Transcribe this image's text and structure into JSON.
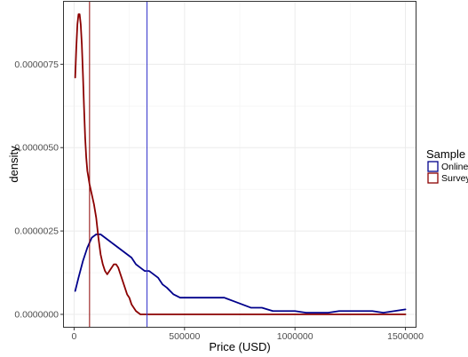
{
  "chart_data": {
    "type": "line",
    "title": "",
    "xlabel": "Price (USD)",
    "ylabel": "density",
    "xlim": [
      -50000,
      1550000
    ],
    "ylim": [
      -4e-07,
      9.4e-06
    ],
    "x_ticks": [
      0,
      500000,
      1000000,
      1500000
    ],
    "x_tick_labels": [
      "0",
      "500000",
      "1000000",
      "1500000"
    ],
    "y_ticks": [
      0,
      2.5e-06,
      5e-06,
      7.5e-06
    ],
    "y_tick_labels": [
      "0.0000000",
      "0.0000025",
      "0.0000050",
      "0.0000075"
    ],
    "grid": true,
    "legend": {
      "title": "Sample",
      "position": "right"
    },
    "series": [
      {
        "name": "Online",
        "color": "#00008B",
        "x": [
          5000,
          20000,
          40000,
          60000,
          80000,
          100000,
          120000,
          140000,
          160000,
          180000,
          200000,
          220000,
          240000,
          260000,
          280000,
          300000,
          320000,
          340000,
          360000,
          380000,
          400000,
          420000,
          450000,
          480000,
          520000,
          560000,
          600000,
          640000,
          660000,
          680000,
          720000,
          760000,
          800000,
          850000,
          900000,
          950000,
          1000000,
          1050000,
          1100000,
          1150000,
          1200000,
          1250000,
          1300000,
          1350000,
          1400000,
          1450000,
          1500000
        ],
        "values": [
          7e-07,
          1.1e-06,
          1.6e-06,
          2e-06,
          2.3e-06,
          2.4e-06,
          2.4e-06,
          2.3e-06,
          2.2e-06,
          2.1e-06,
          2e-06,
          1.9e-06,
          1.8e-06,
          1.7e-06,
          1.5e-06,
          1.4e-06,
          1.3e-06,
          1.3e-06,
          1.2e-06,
          1.1e-06,
          9e-07,
          8e-07,
          6e-07,
          5e-07,
          5e-07,
          5e-07,
          5e-07,
          5e-07,
          5e-07,
          5e-07,
          4e-07,
          3e-07,
          2e-07,
          2e-07,
          1e-07,
          1e-07,
          1e-07,
          5e-08,
          5e-08,
          5e-08,
          1e-07,
          1e-07,
          1e-07,
          1e-07,
          5e-08,
          1e-07,
          1.5e-07
        ]
      },
      {
        "name": "Survey",
        "color": "#8B0000",
        "x": [
          5000,
          10000,
          15000,
          20000,
          25000,
          30000,
          35000,
          40000,
          45000,
          50000,
          55000,
          60000,
          65000,
          70000,
          80000,
          90000,
          100000,
          110000,
          120000,
          130000,
          140000,
          150000,
          160000,
          170000,
          180000,
          190000,
          200000,
          210000,
          220000,
          230000,
          240000,
          250000,
          260000,
          280000,
          300000,
          350000,
          400000,
          500000,
          700000,
          900000,
          1100000,
          1300000,
          1500000
        ],
        "values": [
          7.1e-06,
          8e-06,
          8.7e-06,
          9e-06,
          9e-06,
          8.7e-06,
          8.1e-06,
          7.2e-06,
          6.2e-06,
          5.3e-06,
          4.7e-06,
          4.3e-06,
          4.1e-06,
          3.9e-06,
          3.6e-06,
          3.3e-06,
          2.9e-06,
          2.3e-06,
          1.8e-06,
          1.5e-06,
          1.3e-06,
          1.2e-06,
          1.3e-06,
          1.4e-06,
          1.5e-06,
          1.5e-06,
          1.4e-06,
          1.2e-06,
          1e-06,
          8e-07,
          6e-07,
          5e-07,
          3e-07,
          1e-07,
          0.0,
          0.0,
          0.0,
          0.0,
          0.0,
          0.0,
          0.0,
          0.0,
          0.0
        ]
      }
    ],
    "vlines": [
      {
        "series": "Survey",
        "x": 70000,
        "color": "#8B0000"
      },
      {
        "series": "Online",
        "x": 330000,
        "color": "#3333CC"
      }
    ]
  }
}
